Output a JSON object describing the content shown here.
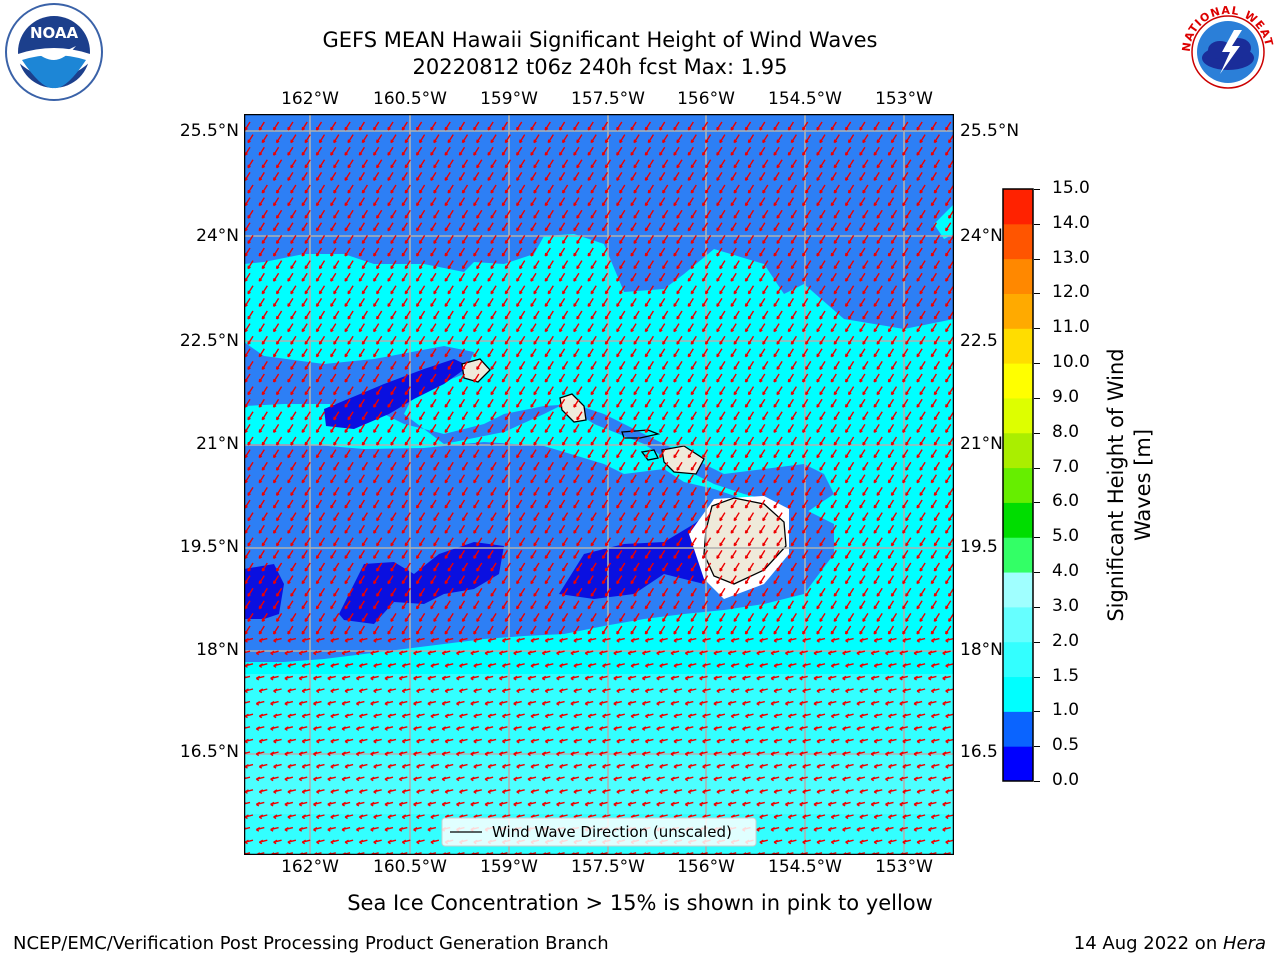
{
  "header": {
    "title_line1": "GEFS MEAN Hawaii Significant Height of Wind Waves",
    "title_line2": "20220812 t06z 240h fcst   Max: 1.95"
  },
  "map": {
    "lon_ticks_top": [
      "162°W",
      "160.5°W",
      "159°W",
      "157.5°W",
      "156°W",
      "154.5°W",
      "153°W"
    ],
    "lon_ticks_bottom": [
      "162°W",
      "160.5°W",
      "159°W",
      "157.5°W",
      "156°W",
      "154.5°W",
      "153°W"
    ],
    "lat_ticks_left": [
      "25.5°N",
      "24°N",
      "22.5°N",
      "21°N",
      "19.5°N",
      "18°N",
      "16.5°N"
    ],
    "lat_ticks_right": [
      "25.5°N",
      "24°N",
      "22.5",
      "21°N",
      "19.5",
      "18°N",
      "16.5"
    ],
    "legend_label": "Wind Wave Direction (unscaled)"
  },
  "colorbar": {
    "label_line1": "Significant Height of Wind",
    "label_line2": "Waves [m]",
    "ticks": [
      "0.0",
      "0.5",
      "1.0",
      "1.5",
      "2.0",
      "3.0",
      "4.0",
      "5.0",
      "6.0",
      "7.0",
      "8.0",
      "9.0",
      "10.0",
      "11.0",
      "12.0",
      "13.0",
      "14.0",
      "15.0"
    ],
    "colors": [
      "#0000ff",
      "#0a64ff",
      "#00ffff",
      "#33ffff",
      "#66ffff",
      "#a0ffff",
      "#33ff66",
      "#00dd00",
      "#66ee00",
      "#aaee00",
      "#ddff00",
      "#ffff00",
      "#ffdd00",
      "#ffaa00",
      "#ff8800",
      "#ff5500",
      "#ff2200",
      "#ff0000"
    ]
  },
  "logos": {
    "noaa_text": "NOAA",
    "nws_text": "NATIONAL WEATHER SERVICE"
  },
  "footer": {
    "sea_ice_note": "Sea Ice Concentration > 15% is shown in pink to yellow",
    "branch": "NCEP/EMC/Verification Post Processing Product Generation Branch",
    "date_prefix": "14 Aug 2022 on ",
    "machine": "Hera"
  }
}
